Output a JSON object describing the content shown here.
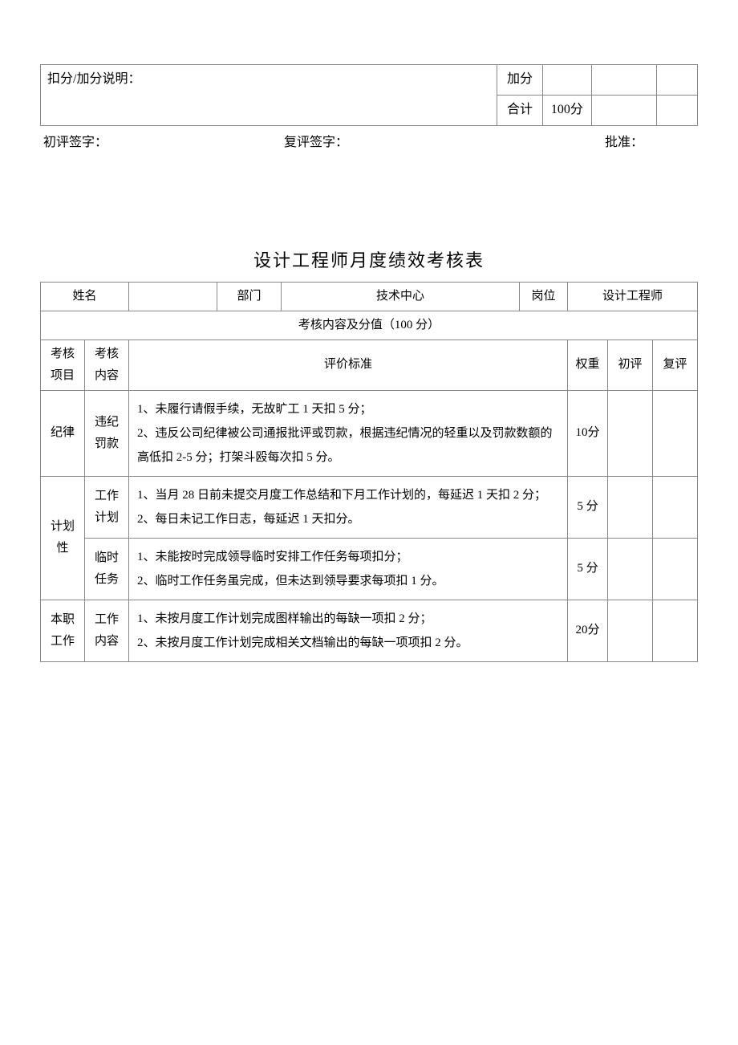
{
  "top_table": {
    "note_label": "扣分/加分说明：",
    "bonus_label": "加分",
    "total_label": "合计",
    "total_value": "100分",
    "col_blank1": "",
    "col_blank2": "",
    "col_blank3": "",
    "col_blank4": ""
  },
  "signatures": {
    "initial": "初评签字：",
    "review": "复评签字：",
    "approve": "批准："
  },
  "title": "设计工程师月度绩效考核表",
  "header": {
    "name_label": "姓名",
    "name_value": "",
    "dept_label": "部门",
    "dept_value": "技术中心",
    "position_label": "岗位",
    "position_value": "设计工程师"
  },
  "section_header": "考核内容及分值（100 分）",
  "columns": {
    "item": "考核项目",
    "content": "考核内容",
    "criteria": "评价标准",
    "weight": "权重",
    "initial": "初评",
    "review": "复评"
  },
  "rows": [
    {
      "item": "纪律",
      "content": "违纪罚款",
      "criteria": "1、未履行请假手续，无故旷工 1 天扣 5 分；\n2、违反公司纪律被公司通报批评或罚款，根据违纪情况的轻重以及罚款数额的高低扣 2-5 分；打架斗殴每次扣 5 分。",
      "weight": "10分"
    },
    {
      "item": "计划性",
      "content": "工作计划",
      "criteria": "1、当月 28 日前未提交月度工作总结和下月工作计划的，每延迟 1 天扣 2 分；\n2、每日未记工作日志，每延迟 1 天扣分。",
      "weight": "5 分"
    },
    {
      "item": "",
      "content": "临时任务",
      "criteria": "1、未能按时完成领导临时安排工作任务每项扣分；\n2、临时工作任务虽完成，但未达到领导要求每项扣 1 分。",
      "weight": "5 分"
    },
    {
      "item": "本职工作",
      "content": "工作内容",
      "criteria": "1、未按月度工作计划完成图样输出的每缺一项扣 2 分；\n2、未按月度工作计划完成相关文档输出的每缺一项项扣 2 分。",
      "weight": "20分"
    }
  ]
}
